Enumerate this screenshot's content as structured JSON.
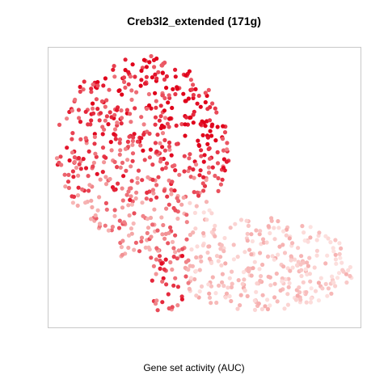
{
  "chart_data": {
    "type": "scatter",
    "title": "Creb3l2_extended (171g)",
    "xlabel": "Gene set activity (AUC)",
    "ylabel": "",
    "axes_visible": false,
    "grid": false,
    "legend": "none",
    "color_scale": {
      "low": "#fde3e1",
      "mid": "#f4a4a4",
      "high": "#e0001a"
    },
    "point_count": 900,
    "regions": [
      {
        "name": "upper-left lobe",
        "x_range": [
          0.03,
          0.57
        ],
        "y_range": [
          0.28,
          0.97
        ],
        "activity_range": [
          0.45,
          1.0
        ]
      },
      {
        "name": "upper-right hotspot",
        "x_range": [
          0.36,
          0.56
        ],
        "y_range": [
          0.62,
          0.95
        ],
        "activity_range": [
          0.85,
          1.0
        ]
      },
      {
        "name": "central neck",
        "x_range": [
          0.22,
          0.55
        ],
        "y_range": [
          0.22,
          0.5
        ],
        "activity_range": [
          0.2,
          0.6
        ]
      },
      {
        "name": "lower-right arm",
        "x_range": [
          0.4,
          0.98
        ],
        "y_range": [
          0.04,
          0.38
        ],
        "activity_range": [
          0.05,
          0.55
        ]
      },
      {
        "name": "lower-left stem",
        "x_range": [
          0.33,
          0.43
        ],
        "y_range": [
          0.04,
          0.25
        ],
        "activity_range": [
          0.6,
          0.9
        ]
      }
    ]
  }
}
